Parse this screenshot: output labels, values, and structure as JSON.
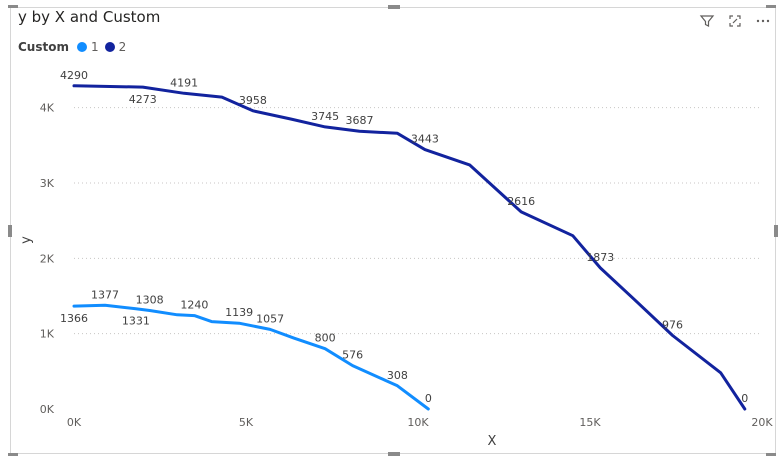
{
  "header": {
    "title": "y by X and Custom"
  },
  "legend": {
    "title": "Custom"
  },
  "chart_data": {
    "type": "line",
    "title": "y by X and Custom",
    "xlabel": "X",
    "ylabel": "y",
    "xlim": [
      0,
      20000
    ],
    "ylim": [
      0,
      4500
    ],
    "x_ticks": [
      0,
      5000,
      10000,
      15000,
      20000
    ],
    "x_tick_labels": [
      "0K",
      "5K",
      "10K",
      "15K",
      "20K"
    ],
    "y_ticks": [
      0,
      1000,
      2000,
      3000,
      4000
    ],
    "y_tick_labels": [
      "0K",
      "1K",
      "2K",
      "3K",
      "4K"
    ],
    "grid": "horizontal dotted",
    "legend_position": "top-left",
    "series": [
      {
        "name": "1",
        "color": "#118DFF",
        "points": [
          {
            "x": 0,
            "y": 1366,
            "label": "1366",
            "pos": "below"
          },
          {
            "x": 900,
            "y": 1377,
            "label": "1377",
            "pos": "above"
          },
          {
            "x": 1800,
            "y": 1331,
            "label": "1331",
            "pos": "below"
          },
          {
            "x": 2200,
            "y": 1308,
            "label": "1308",
            "pos": "above"
          },
          {
            "x": 3000,
            "y": 1250,
            "label": "",
            "pos": "above"
          },
          {
            "x": 3500,
            "y": 1240,
            "label": "1240",
            "pos": "above"
          },
          {
            "x": 4000,
            "y": 1160,
            "label": "",
            "pos": "above"
          },
          {
            "x": 4800,
            "y": 1139,
            "label": "1139",
            "pos": "above"
          },
          {
            "x": 5700,
            "y": 1057,
            "label": "1057",
            "pos": "above"
          },
          {
            "x": 6400,
            "y": 940,
            "label": "",
            "pos": "above"
          },
          {
            "x": 7300,
            "y": 800,
            "label": "800",
            "pos": "above"
          },
          {
            "x": 8100,
            "y": 576,
            "label": "576",
            "pos": "above"
          },
          {
            "x": 9400,
            "y": 308,
            "label": "308",
            "pos": "above"
          },
          {
            "x": 10300,
            "y": 0,
            "label": "0",
            "pos": "above"
          }
        ]
      },
      {
        "name": "2",
        "color": "#12239E",
        "points": [
          {
            "x": 0,
            "y": 4290,
            "label": "4290",
            "pos": "above"
          },
          {
            "x": 2000,
            "y": 4273,
            "label": "4273",
            "pos": "below"
          },
          {
            "x": 3200,
            "y": 4191,
            "label": "4191",
            "pos": "above"
          },
          {
            "x": 4300,
            "y": 4140,
            "label": "",
            "pos": "above"
          },
          {
            "x": 5200,
            "y": 3958,
            "label": "3958",
            "pos": "above"
          },
          {
            "x": 6300,
            "y": 3850,
            "label": "",
            "pos": "above"
          },
          {
            "x": 7300,
            "y": 3745,
            "label": "3745",
            "pos": "above"
          },
          {
            "x": 8300,
            "y": 3687,
            "label": "3687",
            "pos": "above"
          },
          {
            "x": 9400,
            "y": 3660,
            "label": "",
            "pos": "above"
          },
          {
            "x": 10200,
            "y": 3443,
            "label": "3443",
            "pos": "above"
          },
          {
            "x": 11500,
            "y": 3240,
            "label": "",
            "pos": "above"
          },
          {
            "x": 13000,
            "y": 2616,
            "label": "2616",
            "pos": "above"
          },
          {
            "x": 14500,
            "y": 2300,
            "label": "",
            "pos": "above"
          },
          {
            "x": 15300,
            "y": 1873,
            "label": "1873",
            "pos": "above"
          },
          {
            "x": 16300,
            "y": 1450,
            "label": "",
            "pos": "above"
          },
          {
            "x": 17400,
            "y": 976,
            "label": "976",
            "pos": "above"
          },
          {
            "x": 18800,
            "y": 480,
            "label": "",
            "pos": "above"
          },
          {
            "x": 19500,
            "y": 0,
            "label": "0",
            "pos": "above"
          }
        ]
      }
    ]
  }
}
